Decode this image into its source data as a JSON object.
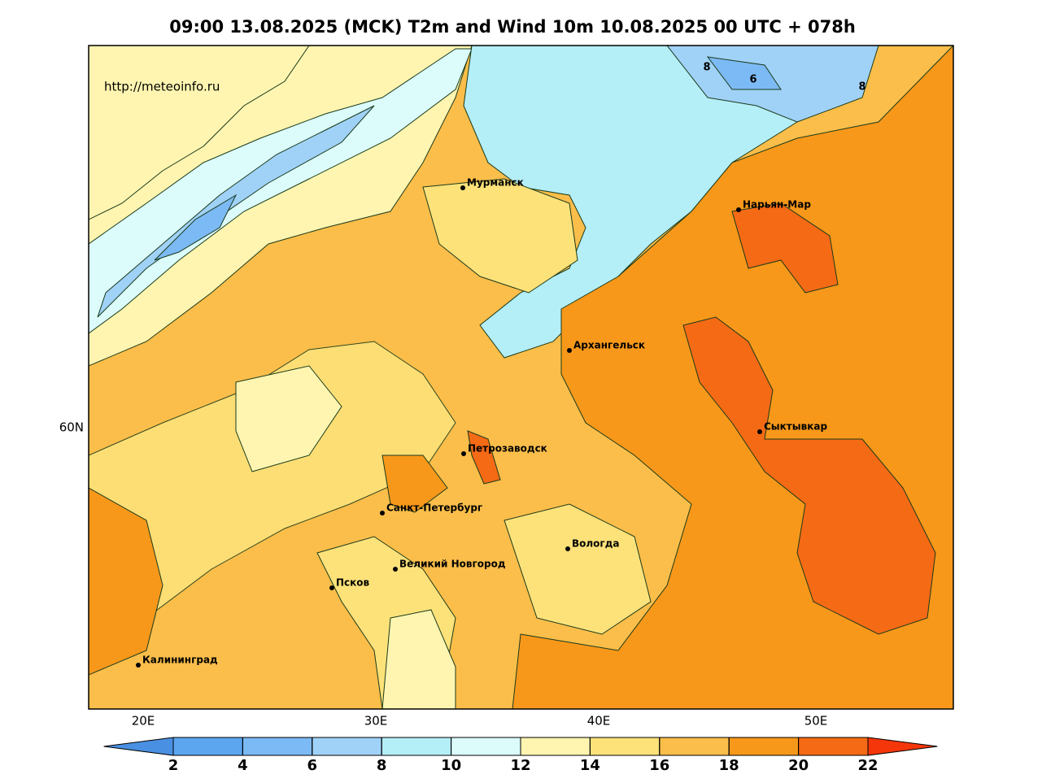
{
  "header": {
    "title": "09:00 13.08.2025 (MCK) T2m and Wind 10m 10.08.2025 00 UTC + 078h"
  },
  "map": {
    "watermark": "http://meteoinfo.ru",
    "lon_labels": [
      "20E",
      "30E",
      "40E",
      "50E"
    ],
    "lat_labels": [
      "60N"
    ],
    "cities": [
      {
        "name": "Мурманск"
      },
      {
        "name": "Нарьян-Мар"
      },
      {
        "name": "Архангельск"
      },
      {
        "name": "Сыктывкар"
      },
      {
        "name": "Петрозаводск"
      },
      {
        "name": "Санкт-Петербург"
      },
      {
        "name": "Вологда"
      },
      {
        "name": "Великий Новгород"
      },
      {
        "name": "Псков"
      },
      {
        "name": "Калининград"
      }
    ],
    "contour_labels": [
      8,
      6,
      8
    ]
  },
  "colorbar": {
    "ticks": [
      2,
      4,
      6,
      8,
      10,
      12,
      14,
      16,
      18,
      20,
      22
    ],
    "colors": [
      "#4a90e2",
      "#5ca6f0",
      "#7cbaf5",
      "#a0d2f8",
      "#b4eef7",
      "#dcfcfc",
      "#fff5b0",
      "#fde27a",
      "#fbbe4a",
      "#f7981a",
      "#f56a14",
      "#f5360a"
    ]
  }
}
